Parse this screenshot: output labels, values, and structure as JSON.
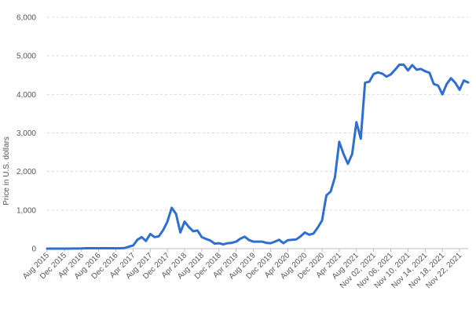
{
  "chart_data": {
    "type": "line",
    "title": "",
    "xlabel": "",
    "ylabel": "Price in U.S. dollars",
    "ylim": [
      0,
      6000
    ],
    "yticks": [
      0,
      1000,
      2000,
      3000,
      4000,
      5000,
      6000
    ],
    "ytick_labels": [
      "0",
      "1,000",
      "2,000",
      "3,000",
      "4,000",
      "5,000",
      "6,000"
    ],
    "grid": "horizontal dashed",
    "legend": "none",
    "line_color": "#2f6fd1",
    "x_tick_labels": [
      {
        "i": 0,
        "label": "Aug 2015"
      },
      {
        "i": 4,
        "label": "Dec 2015"
      },
      {
        "i": 8,
        "label": "Apr 2016"
      },
      {
        "i": 12,
        "label": "Aug 2016"
      },
      {
        "i": 16,
        "label": "Dec 2016"
      },
      {
        "i": 20,
        "label": "Apr 2017"
      },
      {
        "i": 24,
        "label": "Aug 2017"
      },
      {
        "i": 28,
        "label": "Dec 2017"
      },
      {
        "i": 32,
        "label": "Apr 2018"
      },
      {
        "i": 36,
        "label": "Aug 2018"
      },
      {
        "i": 40,
        "label": "Dec 2018"
      },
      {
        "i": 44,
        "label": "Apr 2019"
      },
      {
        "i": 48,
        "label": "Aug 2019"
      },
      {
        "i": 52,
        "label": "Dec 2019"
      },
      {
        "i": 56,
        "label": "Apr 2020"
      },
      {
        "i": 60,
        "label": "Aug 2020"
      },
      {
        "i": 64,
        "label": "Dec 2020"
      },
      {
        "i": 68,
        "label": "Apr 2021"
      },
      {
        "i": 72,
        "label": "Aug 2021"
      },
      {
        "i": 76,
        "label": "Nov 02, 2021"
      },
      {
        "i": 80,
        "label": "Nov 06, 2021"
      },
      {
        "i": 84,
        "label": "Nov 10, 2021"
      },
      {
        "i": 88,
        "label": "Nov 14, 2021"
      },
      {
        "i": 92,
        "label": "Nov 18, 2021"
      },
      {
        "i": 96,
        "label": "Nov 22, 2021"
      }
    ],
    "series": [
      {
        "values": [
          1,
          1,
          1,
          1,
          1,
          1,
          2,
          3,
          5,
          10,
          12,
          10,
          10,
          12,
          11,
          10,
          8,
          10,
          15,
          50,
          80,
          230,
          300,
          200,
          380,
          300,
          320,
          480,
          700,
          1060,
          900,
          420,
          700,
          560,
          450,
          470,
          300,
          250,
          210,
          130,
          140,
          110,
          140,
          150,
          180,
          260,
          310,
          220,
          180,
          180,
          180,
          150,
          140,
          180,
          230,
          140,
          220,
          230,
          240,
          320,
          420,
          360,
          390,
          550,
          730,
          1380,
          1480,
          1850,
          2770,
          2450,
          2200,
          2450,
          3280,
          2850,
          4300,
          4330,
          4530,
          4570,
          4540,
          4460,
          4520,
          4640,
          4770,
          4770,
          4620,
          4760,
          4640,
          4660,
          4600,
          4560,
          4270,
          4230,
          4000,
          4270,
          4420,
          4300,
          4120,
          4360,
          4310
        ]
      }
    ]
  }
}
